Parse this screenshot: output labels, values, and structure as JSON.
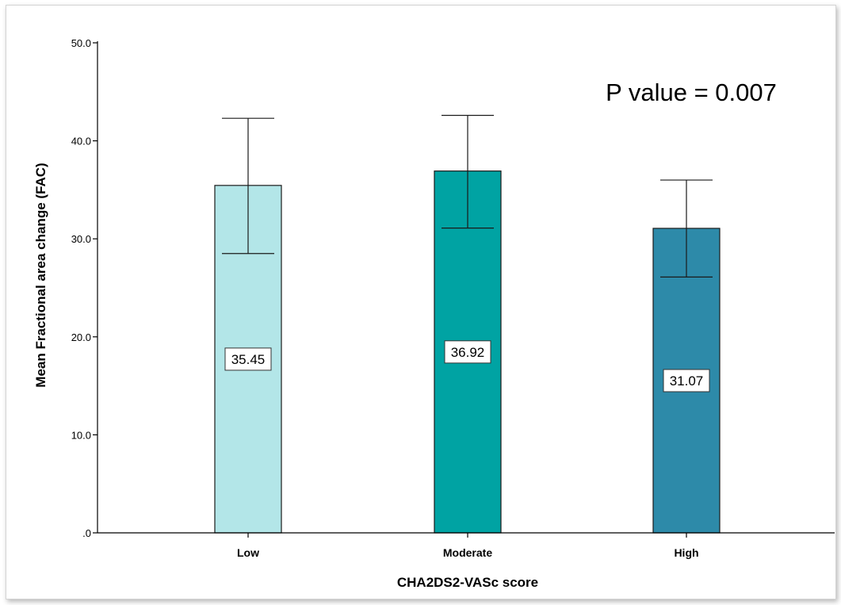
{
  "chart_data": {
    "type": "bar",
    "categories": [
      "Low",
      "Moderate",
      "High"
    ],
    "values": [
      35.45,
      36.92,
      31.07
    ],
    "value_labels": [
      "35.45",
      "36.92",
      "31.07"
    ],
    "error_bars": [
      {
        "low": 28.5,
        "high": 42.3
      },
      {
        "low": 31.1,
        "high": 42.6
      },
      {
        "low": 26.1,
        "high": 36.0
      }
    ],
    "colors": [
      "#b3e6e8",
      "#00a3a3",
      "#2d8aa9"
    ],
    "title": "",
    "xlabel": "CHA2DS2-VASc score",
    "ylabel": "Mean Fractional area change (FAC)",
    "ylim": [
      0,
      50
    ],
    "yticks": [
      0,
      10,
      20,
      30,
      40,
      50
    ],
    "ytick_labels": [
      ".0",
      "10.0",
      "20.0",
      "30.0",
      "40.0",
      "50.0"
    ],
    "annotation": "P value = 0.007",
    "grid": false,
    "legend": "none"
  }
}
